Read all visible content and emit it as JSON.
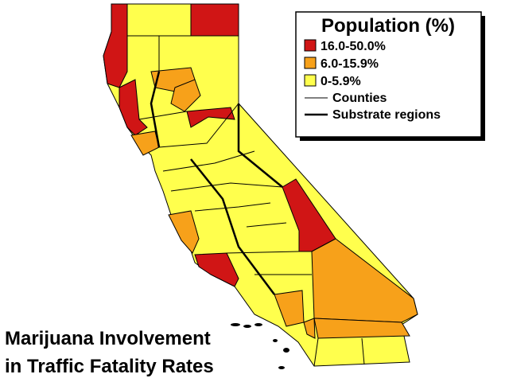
{
  "title": [
    "Marijuana Involvement",
    "in Traffic Fatality Rates"
  ],
  "legend": {
    "title": "Population (%)",
    "items": [
      {
        "label": "16.0-50.0%",
        "color": "#d01515"
      },
      {
        "label": "6.0-15.9%",
        "color": "#f7a11a"
      },
      {
        "label": "0-5.9%",
        "color": "#ffff4d"
      }
    ],
    "lines": [
      {
        "label": "Counties"
      },
      {
        "label": "Substrate regions"
      }
    ]
  }
}
